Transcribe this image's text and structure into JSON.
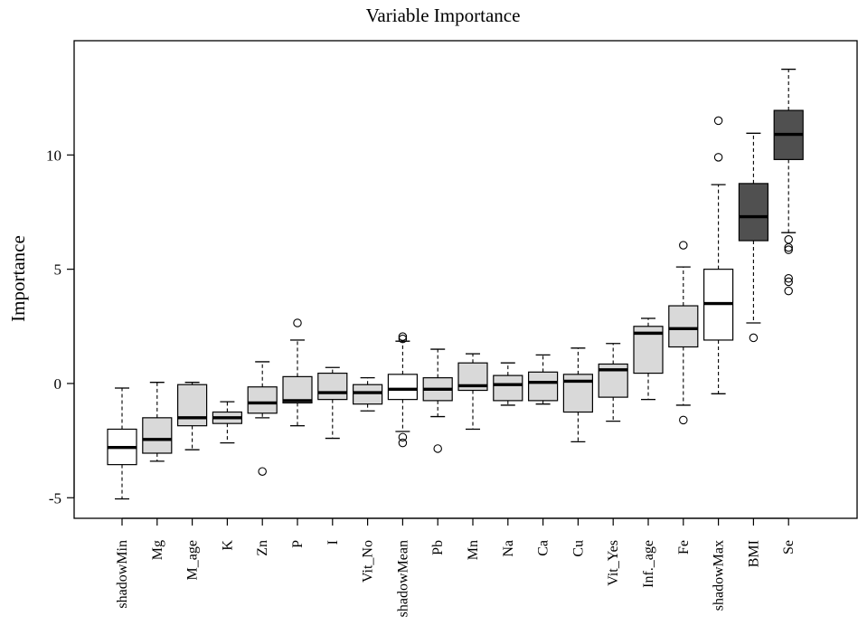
{
  "chart_data": {
    "type": "boxplot",
    "title": "Variable Importance",
    "xlabel": "",
    "ylabel": "Importance",
    "ylim": [
      -5.9,
      15.0
    ],
    "yticks": [
      -5,
      0,
      5,
      10
    ],
    "grid": false,
    "legend": "none",
    "colors": {
      "shadow": "#ffffff",
      "tentative": "#d9d9d9",
      "confirmed": "#505050",
      "stroke": "#000000"
    },
    "boxes": [
      {
        "name": "shadowMin",
        "group": "shadow",
        "lower_whisker": -5.05,
        "q1": -3.55,
        "median": -2.8,
        "q3": -2.0,
        "upper_whisker": -0.2,
        "outliers": []
      },
      {
        "name": "Mg",
        "group": "tentative",
        "lower_whisker": -3.4,
        "q1": -3.05,
        "median": -2.45,
        "q3": -1.5,
        "upper_whisker": 0.05,
        "outliers": []
      },
      {
        "name": "M_age",
        "group": "tentative",
        "lower_whisker": -2.9,
        "q1": -1.85,
        "median": -1.5,
        "q3": -0.05,
        "upper_whisker": 0.05,
        "outliers": []
      },
      {
        "name": "K",
        "group": "tentative",
        "lower_whisker": -2.6,
        "q1": -1.75,
        "median": -1.5,
        "q3": -1.25,
        "upper_whisker": -0.8,
        "outliers": []
      },
      {
        "name": "Zn",
        "group": "tentative",
        "lower_whisker": -1.5,
        "q1": -1.3,
        "median": -0.85,
        "q3": -0.15,
        "upper_whisker": 0.95,
        "outliers": [
          -3.85
        ]
      },
      {
        "name": "P",
        "group": "tentative",
        "lower_whisker": -1.85,
        "q1": -0.85,
        "median": -0.75,
        "q3": 0.3,
        "upper_whisker": 1.9,
        "outliers": [
          2.65
        ]
      },
      {
        "name": "I",
        "group": "tentative",
        "lower_whisker": -2.4,
        "q1": -0.7,
        "median": -0.4,
        "q3": 0.45,
        "upper_whisker": 0.7,
        "outliers": []
      },
      {
        "name": "Vit_No",
        "group": "tentative",
        "lower_whisker": -1.2,
        "q1": -0.9,
        "median": -0.4,
        "q3": -0.05,
        "upper_whisker": 0.25,
        "outliers": []
      },
      {
        "name": "shadowMean",
        "group": "shadow",
        "lower_whisker": -2.1,
        "q1": -0.7,
        "median": -0.25,
        "q3": 0.4,
        "upper_whisker": 1.85,
        "outliers": [
          -2.35,
          -2.6,
          1.95,
          2.05
        ]
      },
      {
        "name": "Pb",
        "group": "tentative",
        "lower_whisker": -1.45,
        "q1": -0.75,
        "median": -0.25,
        "q3": 0.25,
        "upper_whisker": 1.5,
        "outliers": [
          -2.85
        ]
      },
      {
        "name": "Mn",
        "group": "tentative",
        "lower_whisker": -2.0,
        "q1": -0.3,
        "median": -0.1,
        "q3": 0.9,
        "upper_whisker": 1.3,
        "outliers": []
      },
      {
        "name": "Na",
        "group": "tentative",
        "lower_whisker": -0.95,
        "q1": -0.75,
        "median": -0.05,
        "q3": 0.35,
        "upper_whisker": 0.9,
        "outliers": []
      },
      {
        "name": "Ca",
        "group": "tentative",
        "lower_whisker": -0.9,
        "q1": -0.75,
        "median": 0.05,
        "q3": 0.5,
        "upper_whisker": 1.25,
        "outliers": []
      },
      {
        "name": "Cu",
        "group": "tentative",
        "lower_whisker": -2.55,
        "q1": -1.25,
        "median": 0.1,
        "q3": 0.4,
        "upper_whisker": 1.55,
        "outliers": []
      },
      {
        "name": "Vit_Yes",
        "group": "tentative",
        "lower_whisker": -1.65,
        "q1": -0.6,
        "median": 0.6,
        "q3": 0.85,
        "upper_whisker": 1.75,
        "outliers": []
      },
      {
        "name": "Inf._age",
        "group": "tentative",
        "lower_whisker": -0.7,
        "q1": 0.45,
        "median": 2.2,
        "q3": 2.5,
        "upper_whisker": 2.85,
        "outliers": []
      },
      {
        "name": "Fe",
        "group": "tentative",
        "lower_whisker": -0.95,
        "q1": 1.6,
        "median": 2.4,
        "q3": 3.4,
        "upper_whisker": 5.1,
        "outliers": [
          6.05,
          -1.6
        ]
      },
      {
        "name": "shadowMax",
        "group": "shadow",
        "lower_whisker": -0.45,
        "q1": 1.9,
        "median": 3.5,
        "q3": 5.0,
        "upper_whisker": 8.7,
        "outliers": [
          9.9,
          11.5
        ]
      },
      {
        "name": "BMI",
        "group": "confirmed",
        "lower_whisker": 2.65,
        "q1": 6.25,
        "median": 7.3,
        "q3": 8.75,
        "upper_whisker": 10.95,
        "outliers": [
          2.0
        ]
      },
      {
        "name": "Se",
        "group": "confirmed",
        "lower_whisker": 6.6,
        "q1": 9.8,
        "median": 10.9,
        "q3": 11.95,
        "upper_whisker": 13.75,
        "outliers": [
          6.3,
          5.95,
          5.85,
          4.6,
          4.45,
          4.05
        ]
      }
    ]
  }
}
